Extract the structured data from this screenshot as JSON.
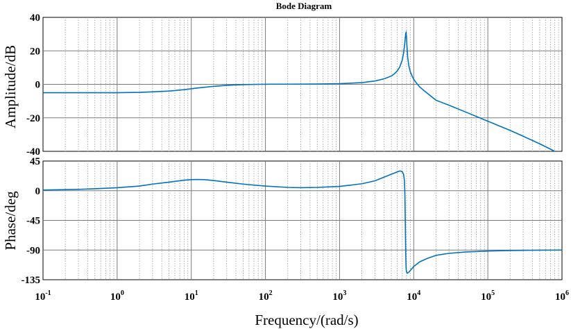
{
  "chart_data": [
    {
      "type": "line",
      "title": "Bode Diagram",
      "ylabel": "Amplitude/dB",
      "xscale": "log",
      "xlim": [
        0.1,
        1000000
      ],
      "ylim": [
        -40,
        40
      ],
      "yticks": [
        "40",
        "20",
        "0",
        "-20",
        "-40"
      ],
      "grid": true,
      "series": [
        {
          "color": "#0072bd",
          "x": [
            0.1,
            0.2,
            0.5,
            1,
            2,
            3,
            5,
            8,
            12,
            20,
            30,
            50,
            80,
            120,
            200,
            500,
            1000,
            2000,
            3000,
            4000,
            5000,
            5500,
            6000,
            6500,
            7000,
            7300,
            7600,
            7800,
            7900,
            8000,
            8100,
            8300,
            8600,
            9000,
            9500,
            10000,
            11000,
            12000,
            14000,
            17000,
            20000,
            30000,
            50000,
            100000,
            200000,
            300000,
            500000,
            800000
          ],
          "y": [
            -5,
            -5,
            -5,
            -5,
            -4.8,
            -4.5,
            -4,
            -3.2,
            -2.2,
            -1.2,
            -0.6,
            -0.2,
            0,
            0.1,
            0.1,
            0.2,
            0.4,
            1,
            2,
            3.3,
            5,
            6.3,
            8,
            10.5,
            14.5,
            18.5,
            25,
            30.5,
            31,
            28,
            23,
            16,
            11,
            7.5,
            5,
            3,
            0.5,
            -1.5,
            -4,
            -7,
            -9.5,
            -12.5,
            -16.5,
            -22,
            -27.5,
            -31,
            -35.5,
            -40
          ]
        }
      ]
    },
    {
      "type": "line",
      "xlabel": "Frequency/(rad/s)",
      "ylabel": "Phase/deg",
      "xscale": "log",
      "xlim": [
        0.1,
        1000000
      ],
      "ylim": [
        -135,
        45
      ],
      "yticks": [
        "45",
        "0",
        "-45",
        "-90",
        "-135"
      ],
      "xticks": [
        {
          "base": "10",
          "exp": "-1"
        },
        {
          "base": "10",
          "exp": "0"
        },
        {
          "base": "10",
          "exp": "1"
        },
        {
          "base": "10",
          "exp": "2"
        },
        {
          "base": "10",
          "exp": "3"
        },
        {
          "base": "10",
          "exp": "4"
        },
        {
          "base": "10",
          "exp": "5"
        },
        {
          "base": "10",
          "exp": "6"
        }
      ],
      "grid": true,
      "series": [
        {
          "color": "#0072bd",
          "x": [
            0.1,
            0.3,
            0.5,
            1,
            2,
            3,
            5,
            8,
            10,
            12,
            15,
            20,
            30,
            50,
            100,
            200,
            300,
            500,
            1000,
            2000,
            3000,
            5000,
            6500,
            7000,
            7300,
            7500,
            7600,
            7700,
            7800,
            7900,
            8000,
            8200,
            8500,
            9000,
            10000,
            12000,
            15000,
            20000,
            30000,
            50000,
            100000,
            200000,
            500000,
            1000000
          ],
          "y": [
            1,
            2,
            3,
            4.5,
            7,
            10,
            13,
            16,
            16.8,
            17,
            16.8,
            15.5,
            13,
            10,
            7,
            5,
            4.5,
            5,
            6.5,
            10.5,
            15,
            25,
            30,
            29,
            25,
            15,
            -5,
            -45,
            -95,
            -118,
            -123,
            -125,
            -124,
            -121,
            -115,
            -108,
            -103,
            -98,
            -95,
            -93,
            -91.5,
            -90.7,
            -90.2,
            -90
          ]
        }
      ]
    }
  ]
}
